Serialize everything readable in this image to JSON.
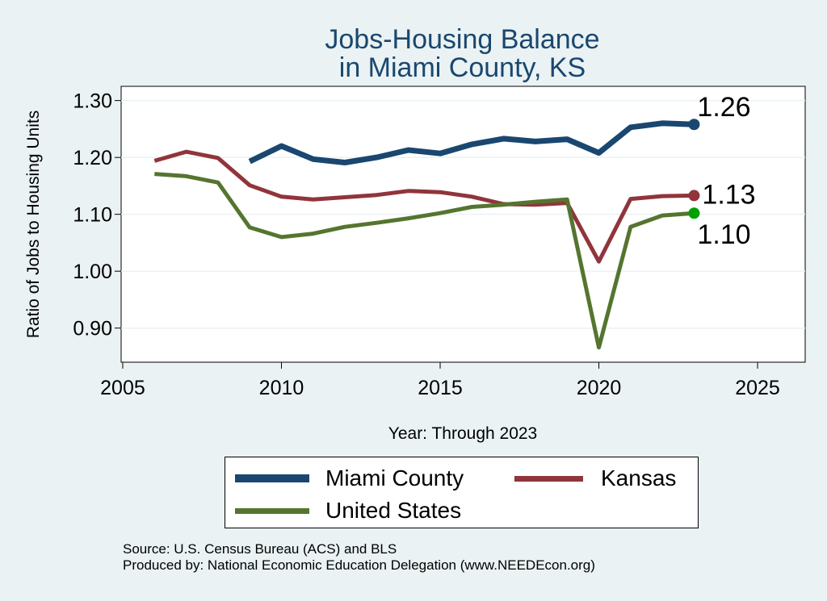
{
  "chart_data": {
    "type": "line",
    "title": [
      "Jobs-Housing Balance",
      "in Miami County, KS"
    ],
    "xlabel": "Year: Through 2023",
    "ylabel": "Ratio of Jobs to Housing Units",
    "xlim": [
      2004.95,
      2026.5
    ],
    "ylim": [
      0.84,
      1.325
    ],
    "xticks": [
      2005,
      2010,
      2015,
      2020,
      2025
    ],
    "yticks": [
      0.9,
      1.0,
      1.1,
      1.2,
      1.3
    ],
    "ytick_labels": [
      "0.90",
      "1.00",
      "1.10",
      "1.20",
      "1.30"
    ],
    "grid": true,
    "series": [
      {
        "name": "Miami County",
        "color": "#1a476f",
        "x": [
          2009,
          2010,
          2011,
          2012,
          2013,
          2014,
          2015,
          2016,
          2017,
          2018,
          2019,
          2020,
          2021,
          2022,
          2023
        ],
        "values": [
          1.193,
          1.22,
          1.197,
          1.191,
          1.2,
          1.213,
          1.207,
          1.223,
          1.233,
          1.228,
          1.232,
          1.208,
          1.253,
          1.26,
          1.258
        ],
        "end_label": "1.26"
      },
      {
        "name": "Kansas",
        "color": "#90353b",
        "x": [
          2006,
          2007,
          2008,
          2009,
          2010,
          2011,
          2012,
          2013,
          2014,
          2015,
          2016,
          2017,
          2018,
          2019,
          2020,
          2021,
          2022,
          2023
        ],
        "values": [
          1.194,
          1.21,
          1.199,
          1.151,
          1.131,
          1.126,
          1.13,
          1.134,
          1.141,
          1.139,
          1.131,
          1.118,
          1.117,
          1.12,
          1.017,
          1.127,
          1.132,
          1.133
        ],
        "end_label": "1.13"
      },
      {
        "name": "United States",
        "color": "#55752f",
        "marker_color": "#00a000",
        "x": [
          2006,
          2007,
          2008,
          2009,
          2010,
          2011,
          2012,
          2013,
          2014,
          2015,
          2016,
          2017,
          2018,
          2019,
          2020,
          2021,
          2022,
          2023
        ],
        "values": [
          1.171,
          1.167,
          1.156,
          1.077,
          1.06,
          1.066,
          1.078,
          1.085,
          1.093,
          1.102,
          1.113,
          1.117,
          1.122,
          1.126,
          0.866,
          1.078,
          1.098,
          1.102
        ],
        "end_label": "1.10"
      }
    ]
  },
  "legend": {
    "items": [
      {
        "label": "Miami County",
        "color": "#1a476f"
      },
      {
        "label": "Kansas",
        "color": "#90353b"
      },
      {
        "label": "United States",
        "color": "#55752f"
      }
    ]
  },
  "source": {
    "line1": "Source: U.S. Census Bureau (ACS) and BLS",
    "line2": "Produced by: National Economic Education Delegation (www.NEEDEcon.org)"
  }
}
